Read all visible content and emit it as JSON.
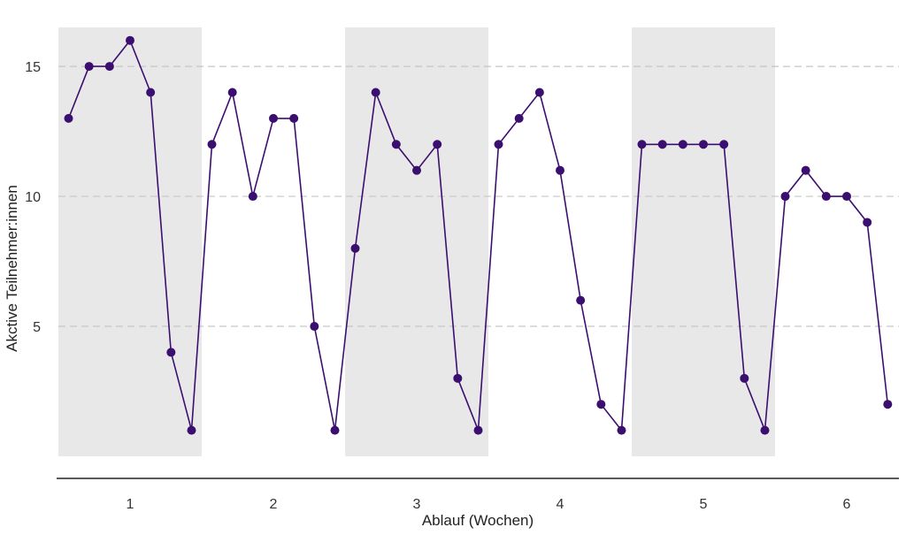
{
  "chart_data": {
    "type": "line",
    "title": "",
    "xlabel": "Ablauf (Wochen)",
    "ylabel": "Akctive Teilnehmer:innen",
    "xlim": [
      0.5,
      6.5
    ],
    "ylim": [
      0,
      16.5
    ],
    "x_ticks": [
      1,
      2,
      3,
      4,
      5,
      6
    ],
    "y_ticks": [
      5,
      10,
      15
    ],
    "grid": "horizontal-dashed",
    "shaded_weeks": [
      1,
      3,
      5
    ],
    "colors": {
      "line": "#3b0f6f",
      "point": "#3b0f6f",
      "shade": "#e8e8e8",
      "grid": "#c6c6c6",
      "axis": "#222222"
    },
    "series": [
      {
        "x": [
          0.571,
          0.714,
          0.857,
          1.0,
          1.143,
          1.286,
          1.429,
          1.571,
          1.714,
          1.857,
          2.0,
          2.143,
          2.286,
          2.429,
          2.571,
          2.714,
          2.857,
          3.0,
          3.143,
          3.286,
          3.429,
          3.571,
          3.714,
          3.857,
          4.0,
          4.143,
          4.286,
          4.429,
          4.571,
          4.714,
          4.857,
          5.0,
          5.143,
          5.286,
          5.429,
          5.571,
          5.714,
          5.857,
          6.0,
          6.143,
          6.286
        ],
        "y": [
          13,
          15,
          15,
          16,
          14,
          4,
          1,
          12,
          14,
          10,
          13,
          13,
          5,
          1,
          8,
          14,
          12,
          11,
          12,
          3,
          1,
          12,
          13,
          14,
          11,
          6,
          2,
          1,
          12,
          12,
          12,
          12,
          12,
          3,
          1,
          10,
          11,
          10,
          10,
          9,
          2
        ]
      }
    ]
  }
}
